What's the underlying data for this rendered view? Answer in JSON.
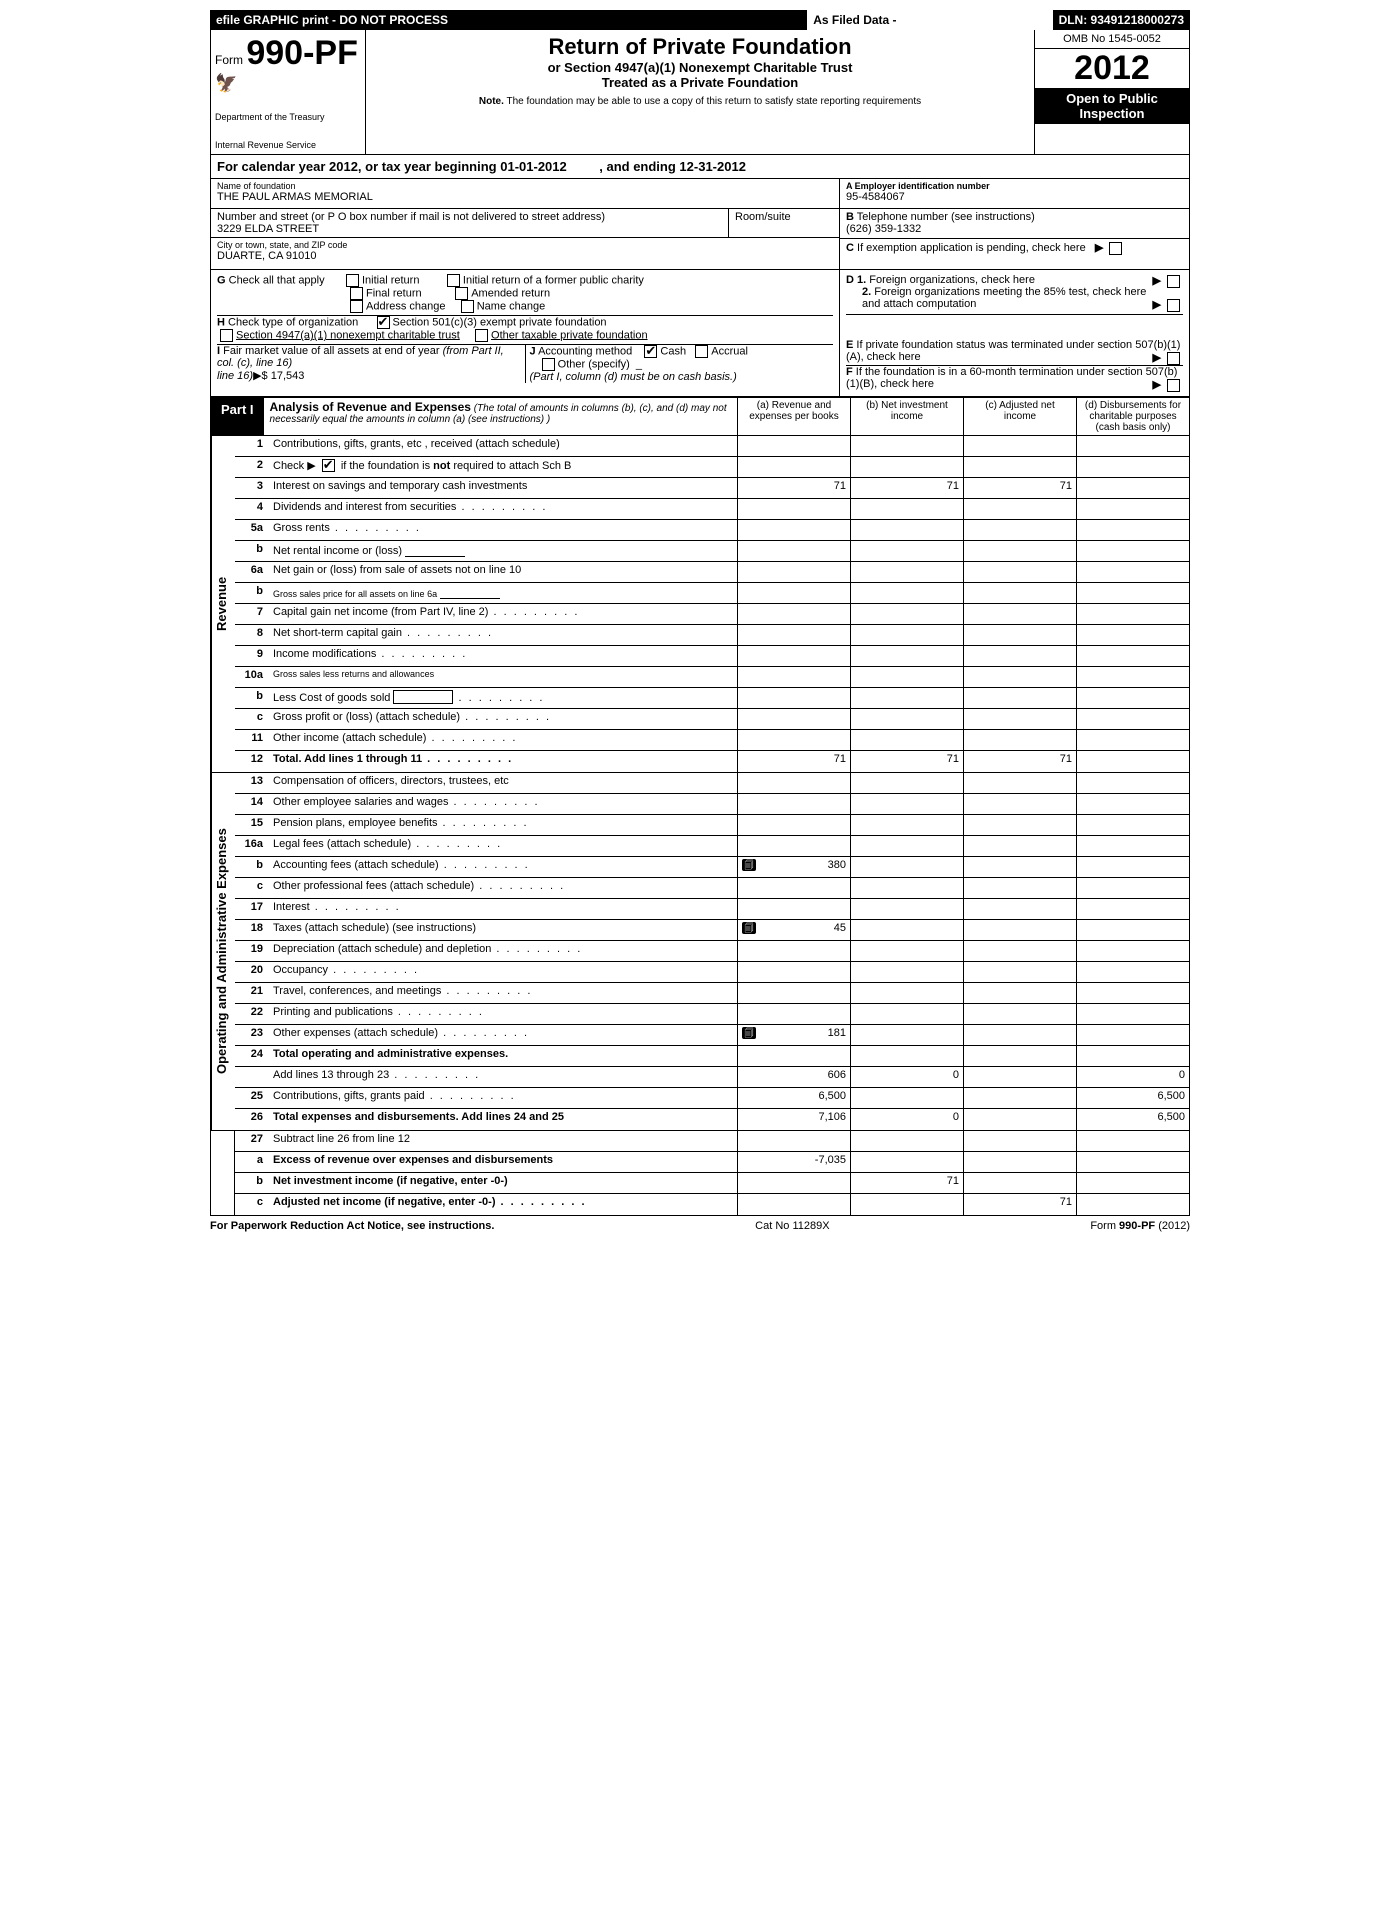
{
  "top_bar": {
    "left": "efile GRAPHIC print - DO NOT PROCESS",
    "mid": "As Filed Data -",
    "right": "DLN: 93491218000273"
  },
  "header": {
    "form_prefix": "Form",
    "form_num": "990-PF",
    "dept1": "Department of the Treasury",
    "dept2": "Internal Revenue Service",
    "title1": "Return of Private Foundation",
    "title2": "or Section 4947(a)(1) Nonexempt Charitable Trust",
    "title3": "Treated as a Private Foundation",
    "note_label": "Note.",
    "note": " The foundation may be able to use a copy of this return to satisfy state reporting requirements",
    "omb": "OMB No 1545-0052",
    "year": "2012",
    "open1": "Open to Public",
    "open2": "Inspection"
  },
  "cal_year": {
    "text1": "For calendar year 2012, or tax year beginning ",
    "begin": "01-01-2012",
    "text2": " , and ending ",
    "end": "12-31-2012"
  },
  "entity": {
    "name_label": "Name of foundation",
    "name": "THE PAUL ARMAS MEMORIAL",
    "addr_label": "Number and street (or P O  box number if mail is not delivered to street address)",
    "room_label": "Room/suite",
    "addr": "3229 ELDA STREET",
    "city_label": "City or town, state, and ZIP code",
    "city": "DUARTE, CA  91010",
    "ein_label": "A Employer identification number",
    "ein": "95-4584067",
    "tel_label_b": "B",
    "tel_label": " Telephone number (see instructions)",
    "tel": "(626) 359-1332",
    "c_label_c": "C",
    "c_label": " If exemption application is pending, check here"
  },
  "checks": {
    "g_label": "G",
    "g_text": " Check all that apply",
    "initial": "Initial return",
    "initial_former": "Initial return of a former public charity",
    "final": "Final return",
    "amended": "Amended return",
    "addr_change": "Address change",
    "name_change": "Name change",
    "h_label": "H",
    "h_text": " Check type of organization",
    "sec501": "Section 501(c)(3) exempt private foundation",
    "sec4947": "Section 4947(a)(1) nonexempt charitable trust",
    "other_tax": "Other taxable private foundation",
    "i_label": "I",
    "i_text": " Fair market value of all assets at end of year ",
    "i_text2": "(from Part II, col. (c), line 16)",
    "i_arrow": "▶$",
    "i_val": "  17,543",
    "j_label": "J",
    "j_text": " Accounting method",
    "cash": "Cash",
    "accrual": "Accrual",
    "other_spec": "Other (specify)",
    "j_note": "(Part I, column (d) must be on cash basis.)",
    "d1_label": "D 1.",
    "d1": " Foreign organizations, check here",
    "d2_label": "2.",
    "d2": " Foreign organizations meeting the 85% test, check here and attach computation",
    "e_label": "E",
    "e": " If private foundation status was terminated under section 507(b)(1)(A), check here",
    "f_label": "F",
    "f": " If the foundation is in a 60-month termination under section 507(b)(1)(B), check here"
  },
  "part1": {
    "label": "Part I",
    "title": "Analysis of Revenue and Expenses",
    "subtitle": " (The total of amounts in columns (b), (c), and (d) may not necessarily equal the amounts in column (a) (see instructions) )",
    "col_a": "(a) Revenue and expenses per books",
    "col_b": "(b) Net investment income",
    "col_c": "(c) Adjusted net income",
    "col_d": "(d) Disbursements for charitable purposes (cash basis only)"
  },
  "side_rev": "Revenue",
  "side_exp": "Operating and Administrative Expenses",
  "rows_rev": [
    {
      "ln": "1",
      "desc": "Contributions, gifts, grants, etc , received (attach schedule)"
    },
    {
      "ln": "2",
      "desc": "Check ▶",
      "desc2": " if the foundation is ",
      "desc3": "not",
      "desc4": " required to attach Sch  B",
      "check": true
    },
    {
      "ln": "3",
      "desc": "Interest on savings and temporary cash investments",
      "a": "71",
      "b": "71",
      "c": "71"
    },
    {
      "ln": "4",
      "desc": "Dividends and interest from securities",
      "dots": true
    },
    {
      "ln": "5a",
      "desc": "Gross rents",
      "dots": true
    },
    {
      "ln": "b",
      "desc": "Net rental income or (loss)",
      "blank": true
    },
    {
      "ln": "6a",
      "desc": "Net gain or (loss) from sale of assets not on line 10"
    },
    {
      "ln": "b",
      "desc": "Gross sales price for all assets on line 6a",
      "blank": true,
      "small": true
    },
    {
      "ln": "7",
      "desc": "Capital gain net income (from Part IV, line 2)",
      "dots": true
    },
    {
      "ln": "8",
      "desc": "Net short-term capital gain",
      "dots": true
    },
    {
      "ln": "9",
      "desc": "Income modifications",
      "dots": true
    },
    {
      "ln": "10a",
      "desc": "Gross sales less returns and allowances",
      "small": true
    },
    {
      "ln": "b",
      "desc": "Less  Cost of goods sold",
      "dots": true,
      "inlinebox": true
    },
    {
      "ln": "c",
      "desc": "Gross profit or (loss) (attach schedule)",
      "dots": true
    },
    {
      "ln": "11",
      "desc": "Other income (attach schedule)",
      "dots": true
    },
    {
      "ln": "12",
      "desc": "Total. Add lines 1 through 11",
      "dots": true,
      "bold": true,
      "a": "71",
      "b": "71",
      "c": "71"
    }
  ],
  "rows_exp": [
    {
      "ln": "13",
      "desc": "Compensation of officers, directors, trustees, etc"
    },
    {
      "ln": "14",
      "desc": "Other employee salaries and wages",
      "dots": true
    },
    {
      "ln": "15",
      "desc": "Pension plans, employee benefits",
      "dots": true
    },
    {
      "ln": "16a",
      "desc": "Legal fees (attach schedule)",
      "dots": true
    },
    {
      "ln": "b",
      "desc": "Accounting fees (attach schedule)",
      "dots": true,
      "icon": true,
      "a": "380"
    },
    {
      "ln": "c",
      "desc": "Other professional fees (attach schedule)",
      "dots": true
    },
    {
      "ln": "17",
      "desc": "Interest",
      "dots": true
    },
    {
      "ln": "18",
      "desc": "Taxes (attach schedule) (see instructions)",
      "icon": true,
      "a": "45"
    },
    {
      "ln": "19",
      "desc": "Depreciation (attach schedule) and depletion",
      "dots": true
    },
    {
      "ln": "20",
      "desc": "Occupancy",
      "dots": true
    },
    {
      "ln": "21",
      "desc": "Travel, conferences, and meetings",
      "dots": true
    },
    {
      "ln": "22",
      "desc": "Printing and publications",
      "dots": true
    },
    {
      "ln": "23",
      "desc": "Other expenses (attach schedule)",
      "dots": true,
      "icon": true,
      "a": "181"
    },
    {
      "ln": "24",
      "desc": "Total operating and administrative expenses.",
      "bold": true
    },
    {
      "ln": "",
      "desc": "Add lines 13 through 23",
      "dots": true,
      "a": "606",
      "b": "0",
      "d": "0"
    },
    {
      "ln": "25",
      "desc": "Contributions, gifts, grants paid",
      "dots": true,
      "a": "6,500",
      "d": "6,500"
    },
    {
      "ln": "26",
      "desc": "Total expenses and disbursements. Add lines 24 and 25",
      "bold": true,
      "a": "7,106",
      "b": "0",
      "d": "6,500"
    }
  ],
  "rows_sub": [
    {
      "ln": "27",
      "desc": "Subtract line 26 from line 12"
    },
    {
      "ln": "a",
      "desc": "Excess of revenue over expenses and disbursements",
      "bold": true,
      "a": "-7,035"
    },
    {
      "ln": "b",
      "desc": "Net investment income (if negative, enter -0-)",
      "bold": true,
      "b": "71"
    },
    {
      "ln": "c",
      "desc": "Adjusted net income (if negative, enter -0-)",
      "bold": true,
      "dots": true,
      "c": "71"
    }
  ],
  "footer": {
    "left": "For Paperwork Reduction Act Notice, see instructions.",
    "mid": "Cat No 11289X",
    "right1": "Form ",
    "right2": "990-PF",
    "right3": " (2012)"
  }
}
